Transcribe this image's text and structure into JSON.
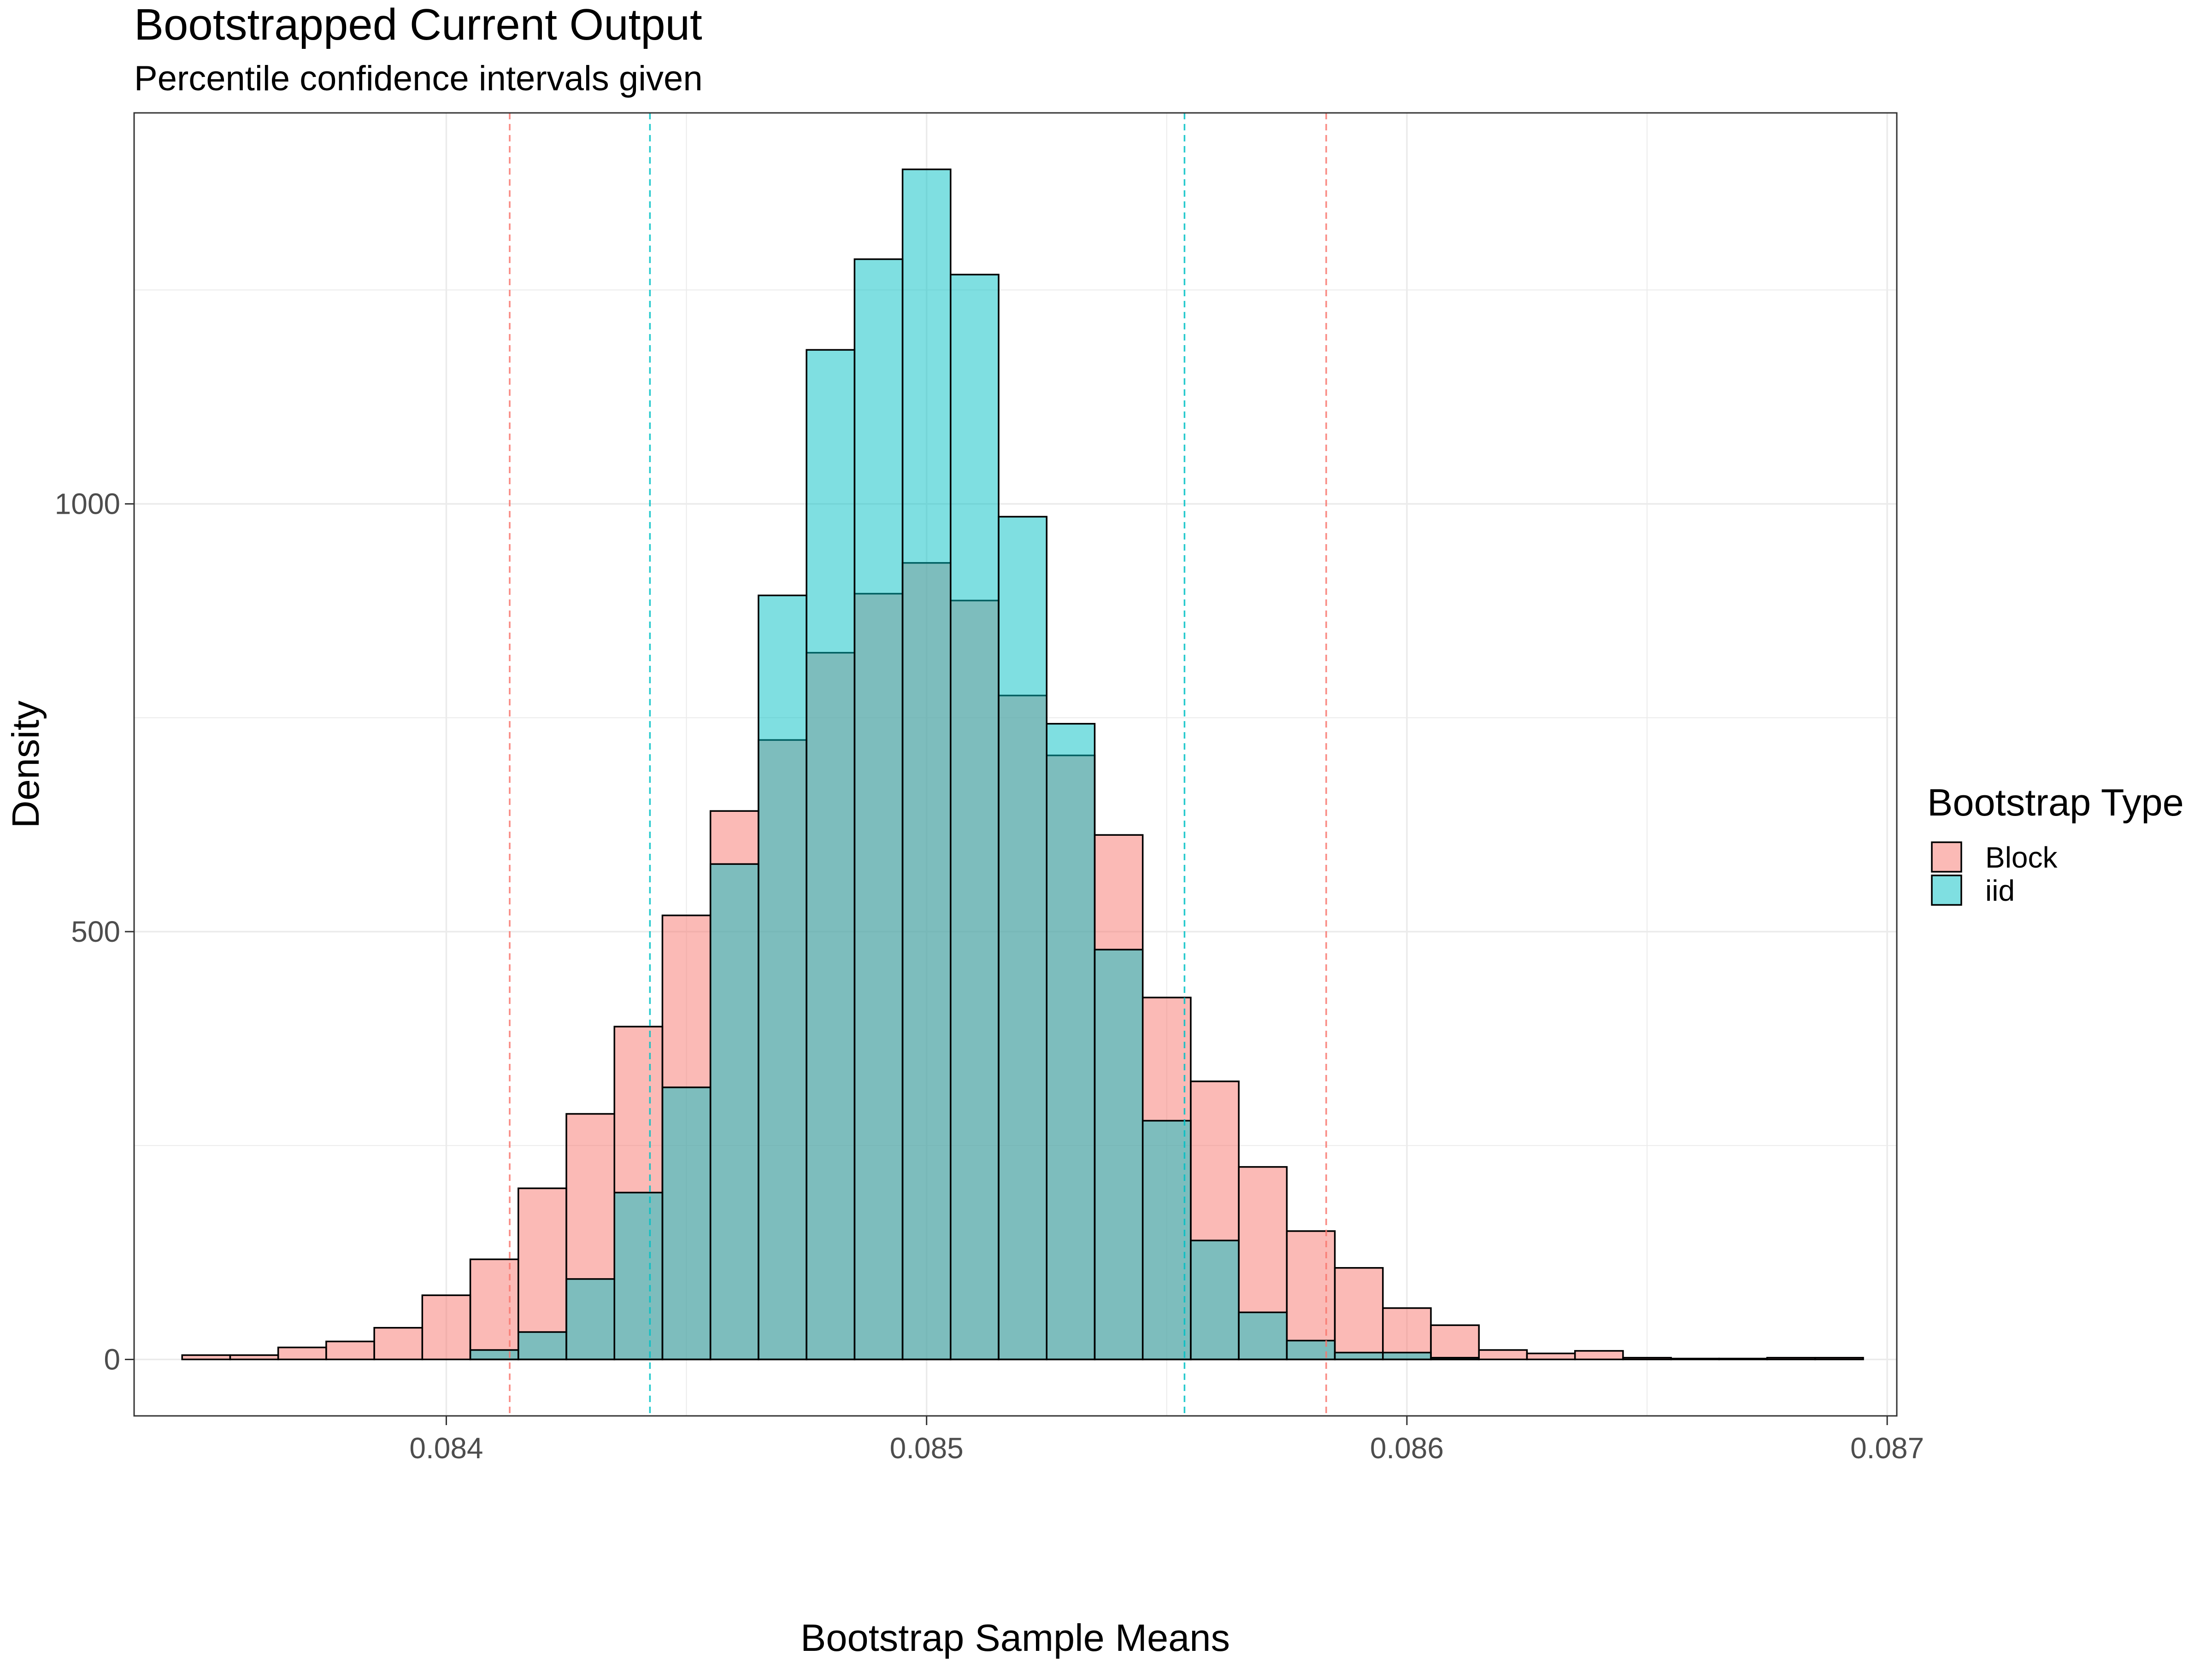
{
  "chart_data": {
    "type": "histogram",
    "title": "Bootstrapped Current Output",
    "subtitle": "Percentile confidence intervals given",
    "xlabel": "Bootstrap Sample Means",
    "ylabel": "Density",
    "xlim": [
      0.08335,
      0.08702
    ],
    "ylim": [
      -66,
      1457
    ],
    "x_ticks": [
      0.084,
      0.085,
      0.086,
      0.087
    ],
    "x_tick_labels": [
      "0.084",
      "0.085",
      "0.086",
      "0.087"
    ],
    "y_ticks": [
      0,
      500,
      1000
    ],
    "y_tick_labels": [
      "0",
      "500",
      "1000"
    ],
    "grid": true,
    "legend": {
      "title": "Bootstrap Type",
      "position": "right",
      "entries": [
        "Block",
        "iid"
      ]
    },
    "bin_width": 0.0001,
    "bin_starts": [
      0.08345,
      0.08355,
      0.08365,
      0.08375,
      0.08385,
      0.08395,
      0.08405,
      0.08415,
      0.08425,
      0.08435,
      0.08445,
      0.08455,
      0.08465,
      0.08475,
      0.08485,
      0.08495,
      0.08505,
      0.08515,
      0.08525,
      0.08535,
      0.08545,
      0.08555,
      0.08565,
      0.08575,
      0.08585,
      0.08595,
      0.08605,
      0.08615,
      0.08625,
      0.08635,
      0.08645,
      0.08655,
      0.08665,
      0.08675,
      0.08685
    ],
    "series": [
      {
        "name": "Block",
        "color": "#F8766D",
        "values": [
          5,
          5,
          14,
          21,
          37,
          75,
          117,
          200,
          287,
          389,
          519,
          641,
          724,
          826,
          895,
          931,
          887,
          776,
          706,
          613,
          423,
          325,
          225,
          150,
          107,
          60,
          40,
          11,
          7,
          10,
          2,
          1,
          1,
          2,
          2
        ]
      },
      {
        "name": "iid",
        "color": "#00BFC4",
        "values": [
          0,
          0,
          0,
          0,
          0,
          0,
          11,
          32,
          94,
          195,
          318,
          579,
          893,
          1180,
          1286,
          1391,
          1268,
          985,
          743,
          479,
          279,
          139,
          55,
          22,
          8,
          8,
          2,
          0,
          0,
          0,
          0,
          0,
          0,
          0,
          0
        ]
      }
    ],
    "ci_lines": [
      {
        "series": "Block",
        "values": [
          0.084132,
          0.085832
        ]
      },
      {
        "series": "iid",
        "values": [
          0.084424,
          0.085537
        ]
      }
    ]
  }
}
